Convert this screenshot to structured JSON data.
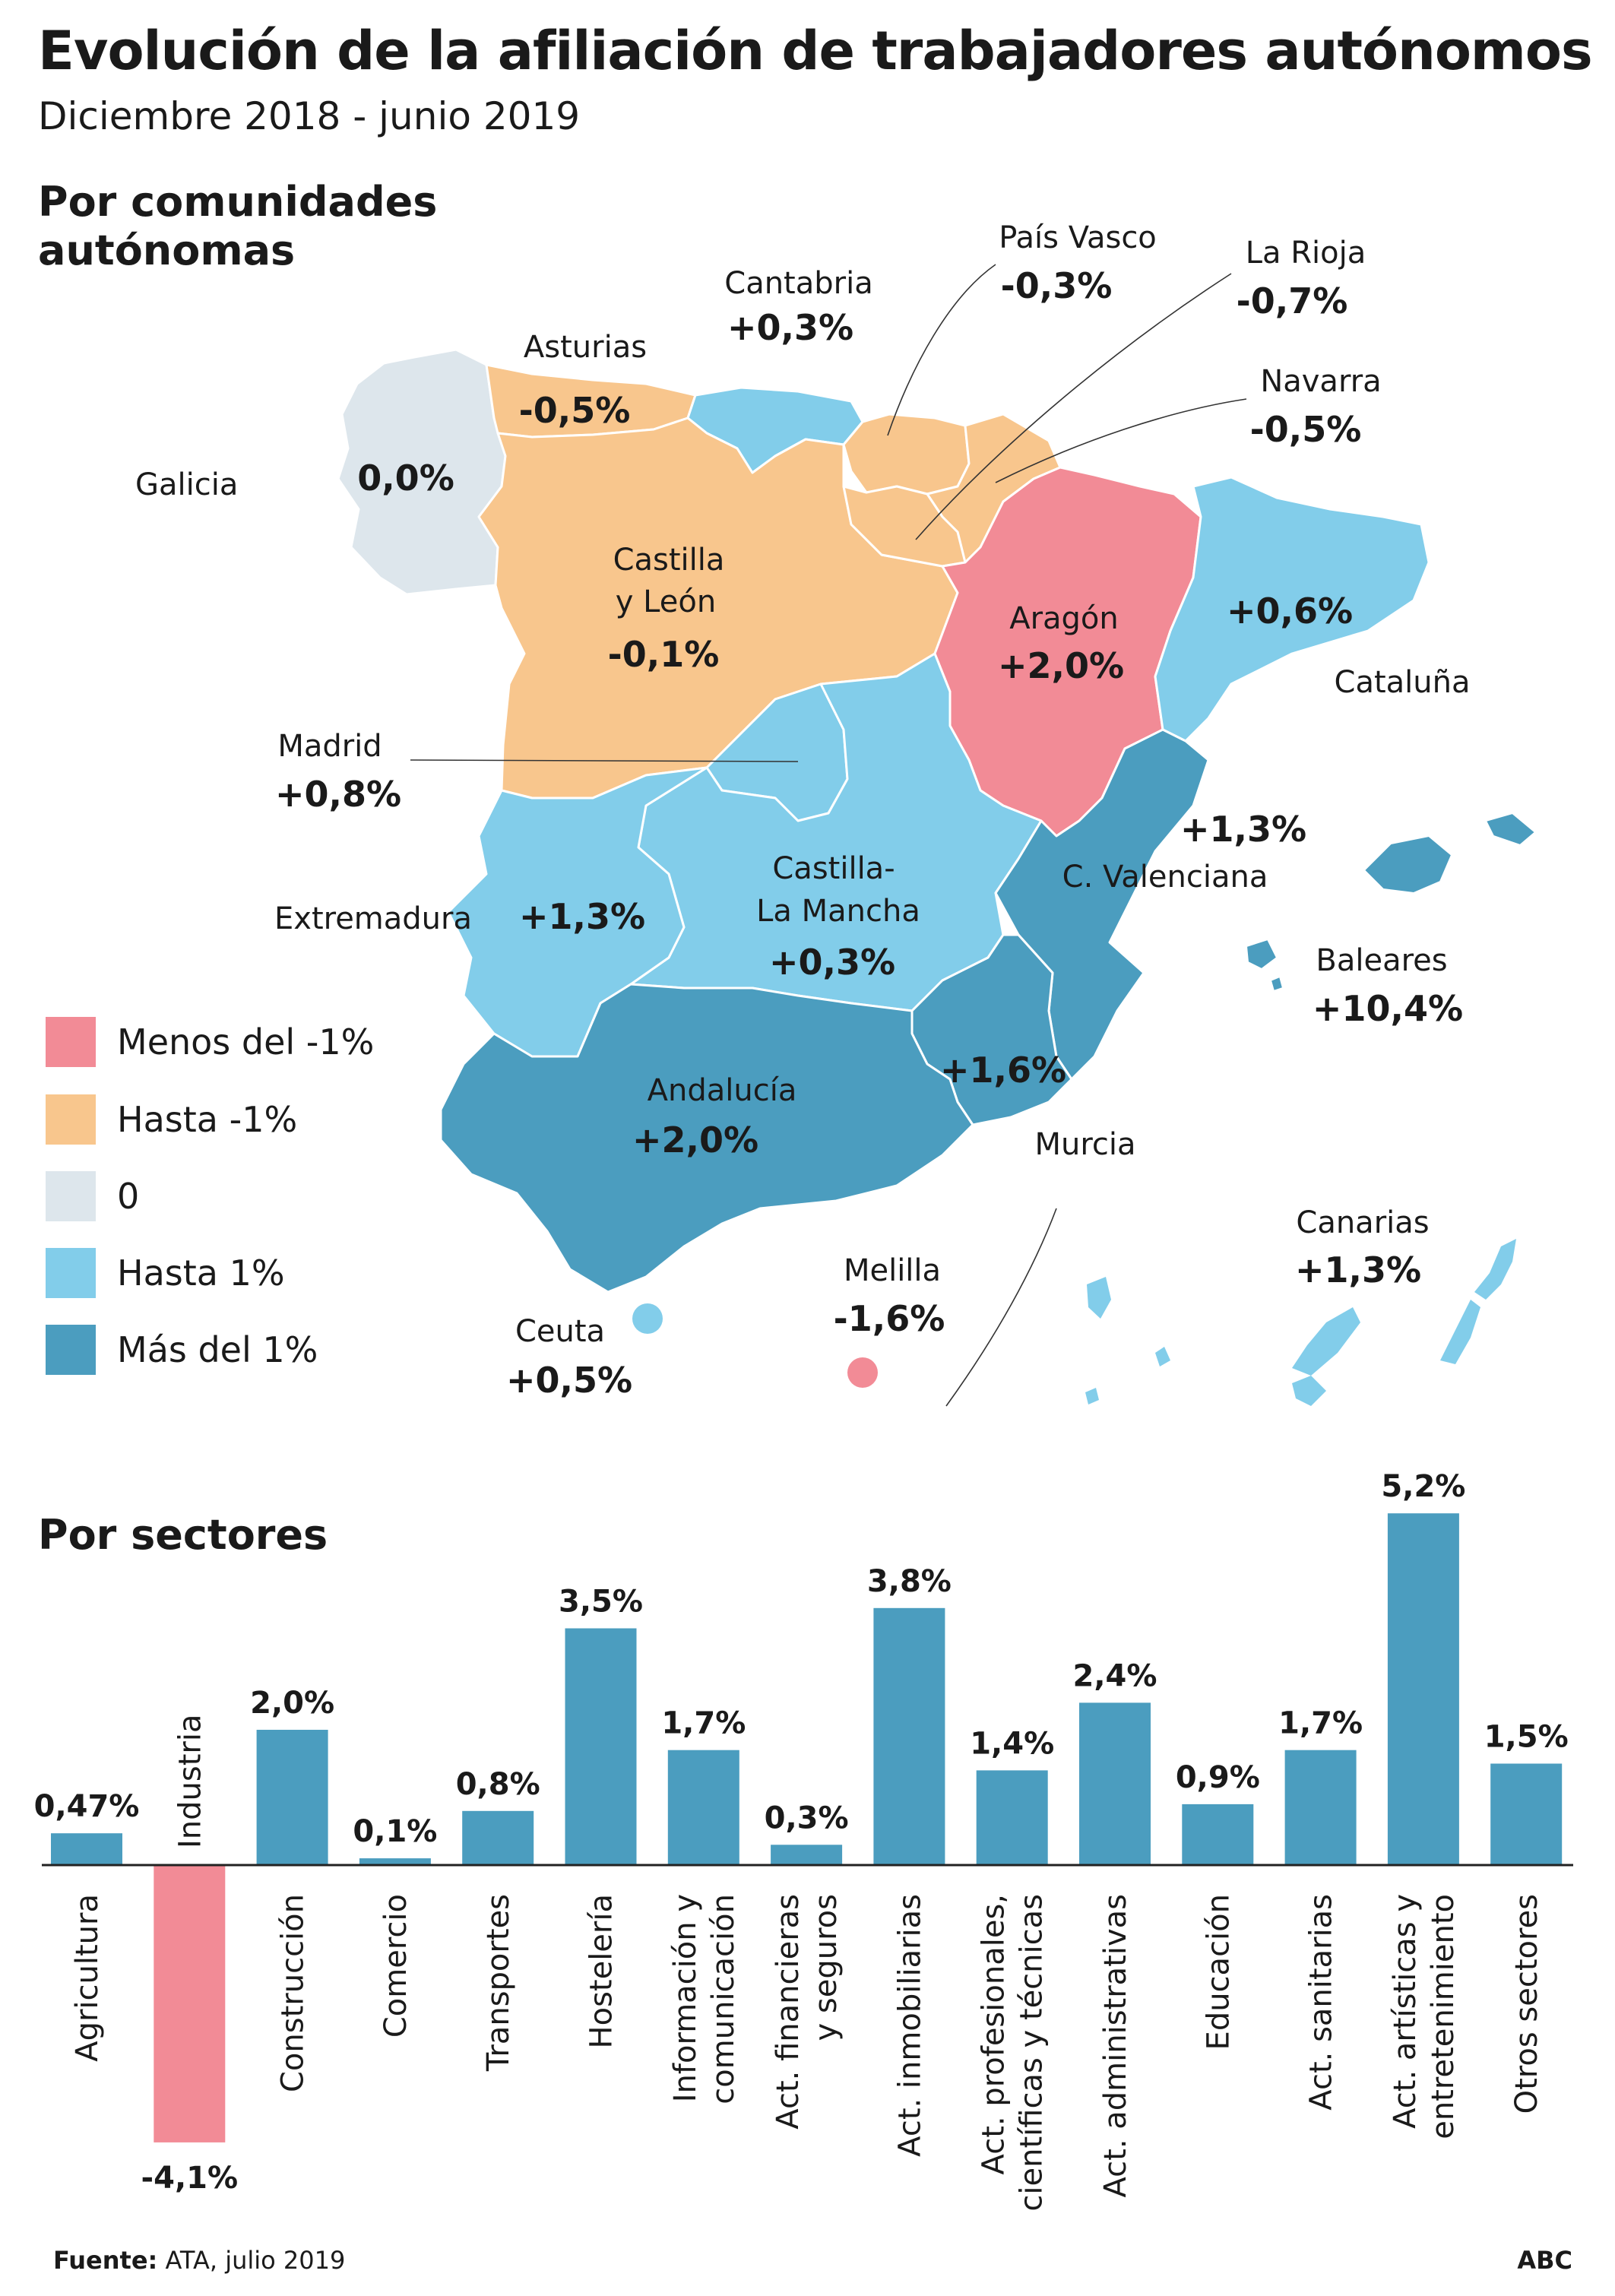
{
  "header": {
    "title": "Evolución de la afiliación de trabajadores autónomos",
    "subtitle": "Diciembre 2018 - junio 2019"
  },
  "map": {
    "section_title_line1": "Por comunidades",
    "section_title_line2": "autónomas",
    "colors": {
      "menos_-1": "#f28b96",
      "hasta_-1": "#f8c68d",
      "cero": "#dde6ec",
      "hasta_1": "#82cdea",
      "mas_1": "#4b9dbf"
    },
    "legend": [
      {
        "label": "Menos del -1%",
        "color": "#f28b96"
      },
      {
        "label": "Hasta -1%",
        "color": "#f8c68d"
      },
      {
        "label": "0",
        "color": "#dde6ec"
      },
      {
        "label": "Hasta 1%",
        "color": "#82cdea"
      },
      {
        "label": "Más del 1%",
        "color": "#4b9dbf"
      }
    ],
    "regions": {
      "galicia": {
        "name": "Galicia",
        "value": "0,0%"
      },
      "asturias": {
        "name": "Asturias",
        "value": "-0,5%"
      },
      "cantabria": {
        "name": "Cantabria",
        "value": "+0,3%"
      },
      "pais_vasco": {
        "name": "País Vasco",
        "value": "-0,3%"
      },
      "la_rioja": {
        "name": "La Rioja",
        "value": "-0,7%"
      },
      "navarra": {
        "name": "Navarra",
        "value": "-0,5%"
      },
      "castilla_leon": {
        "name_line1": "Castilla",
        "name_line2": "y León",
        "value": "-0,1%"
      },
      "aragon": {
        "name": "Aragón",
        "value": "+2,0%"
      },
      "cataluna": {
        "name": "Cataluña",
        "value": "+0,6%"
      },
      "madrid": {
        "name": "Madrid",
        "value": "+0,8%"
      },
      "extremadura": {
        "name": "Extremadura",
        "value": "+1,3%"
      },
      "castilla_la_mancha": {
        "name_line1": "Castilla-",
        "name_line2": "La Mancha",
        "value": "+0,3%"
      },
      "c_valenciana": {
        "name": "C. Valenciana",
        "value": "+1,3%"
      },
      "baleares": {
        "name": "Baleares",
        "value": "+10,4%"
      },
      "andalucia": {
        "name": "Andalucía",
        "value": "+2,0%"
      },
      "murcia": {
        "name": "Murcia",
        "value": "+1,6%"
      },
      "ceuta": {
        "name": "Ceuta",
        "value": "+0,5%"
      },
      "melilla": {
        "name": "Melilla",
        "value": "-1,6%"
      },
      "canarias": {
        "name": "Canarias",
        "value": "+1,3%"
      }
    }
  },
  "chart_data": {
    "type": "bar",
    "title": "Por sectores",
    "xlabel": "",
    "ylabel": "",
    "categories": [
      "Agricultura",
      "Industria",
      "Construcción",
      "Comercio",
      "Transportes",
      "Hostelería",
      "Información y comunicación",
      "Act. financieras y seguros",
      "Act. inmobiliarias",
      "Act. profesionales, científicas y técnicas",
      "Act. administrativas",
      "Educación",
      "Act. sanitarias",
      "Act. artísticas y entretenimiento",
      "Otros sectores"
    ],
    "category_lines": [
      [
        "Agricultura"
      ],
      [
        "Industria"
      ],
      [
        "Construcción"
      ],
      [
        "Comercio"
      ],
      [
        "Transportes"
      ],
      [
        "Hostelería"
      ],
      [
        "Información y",
        "comunicación"
      ],
      [
        "Act. financieras",
        "y seguros"
      ],
      [
        "Act. inmobiliarias"
      ],
      [
        "Act. profesionales,",
        "científicas y técnicas"
      ],
      [
        "Act. administrativas"
      ],
      [
        "Educación"
      ],
      [
        "Act. sanitarias"
      ],
      [
        "Act. artísticas y",
        "entretenimiento"
      ],
      [
        "Otros sectores"
      ]
    ],
    "values": [
      0.47,
      -4.1,
      2.0,
      0.1,
      0.8,
      3.5,
      1.7,
      0.3,
      3.8,
      1.4,
      2.4,
      0.9,
      1.7,
      5.2,
      1.5
    ],
    "value_labels": [
      "0,47%",
      "-4,1%",
      "2,0%",
      "0,1%",
      "0,8%",
      "3,5%",
      "1,7%",
      "0,3%",
      "3,8%",
      "1,4%",
      "2,4%",
      "0,9%",
      "1,7%",
      "5,2%",
      "1,5%"
    ],
    "colors": {
      "positive": "#4b9dbf",
      "negative": "#f28b96"
    },
    "grid": false
  },
  "footer": {
    "source_label": "Fuente:",
    "source_text": "ATA, julio 2019",
    "brand": "ABC"
  }
}
